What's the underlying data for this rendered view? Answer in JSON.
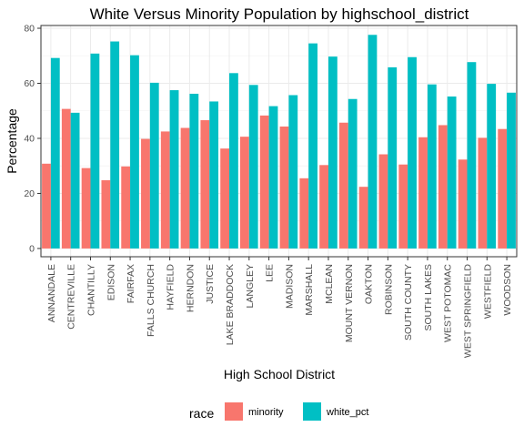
{
  "chart_data": {
    "type": "bar",
    "title": "White Versus Minority Population by highschool_district",
    "xlabel": "High School District",
    "ylabel": "Percentage",
    "ylim": [
      -3,
      81
    ],
    "yticks": [
      0,
      20,
      40,
      60,
      80
    ],
    "grid": true,
    "legend_position": "bottom",
    "legend_title": "race",
    "categories": [
      "ANNANDALE",
      "CENTREVILLE",
      "CHANTILLY",
      "EDISON",
      "FAIRFAX",
      "FALLS CHURCH",
      "HAYFIELD",
      "HERNDON",
      "JUSTICE",
      "LAKE BRADDOCK",
      "LANGLEY",
      "LEE",
      "MADISON",
      "MARSHALL",
      "MCLEAN",
      "MOUNT VERNON",
      "OAKTON",
      "ROBINSON",
      "SOUTH COUNTY",
      "SOUTH LAKES",
      "WEST POTOMAC",
      "WEST SPRINGFIELD",
      "WESTFIELD",
      "WOODSON"
    ],
    "series": [
      {
        "name": "minority",
        "color": "#F8766D",
        "values": [
          30.8,
          50.7,
          29.2,
          24.8,
          29.8,
          39.8,
          42.5,
          43.8,
          46.6,
          36.3,
          40.6,
          48.3,
          44.3,
          25.5,
          30.3,
          45.7,
          22.4,
          34.2,
          30.5,
          40.4,
          44.8,
          32.3,
          40.2,
          43.4
        ]
      },
      {
        "name": "white_pct",
        "color": "#00BFC4",
        "values": [
          69.2,
          49.3,
          70.8,
          75.2,
          70.2,
          60.2,
          57.5,
          56.2,
          53.4,
          63.7,
          59.4,
          51.7,
          55.7,
          74.5,
          69.7,
          54.3,
          77.6,
          65.8,
          69.5,
          59.6,
          55.2,
          67.7,
          59.8,
          56.6
        ]
      }
    ]
  }
}
